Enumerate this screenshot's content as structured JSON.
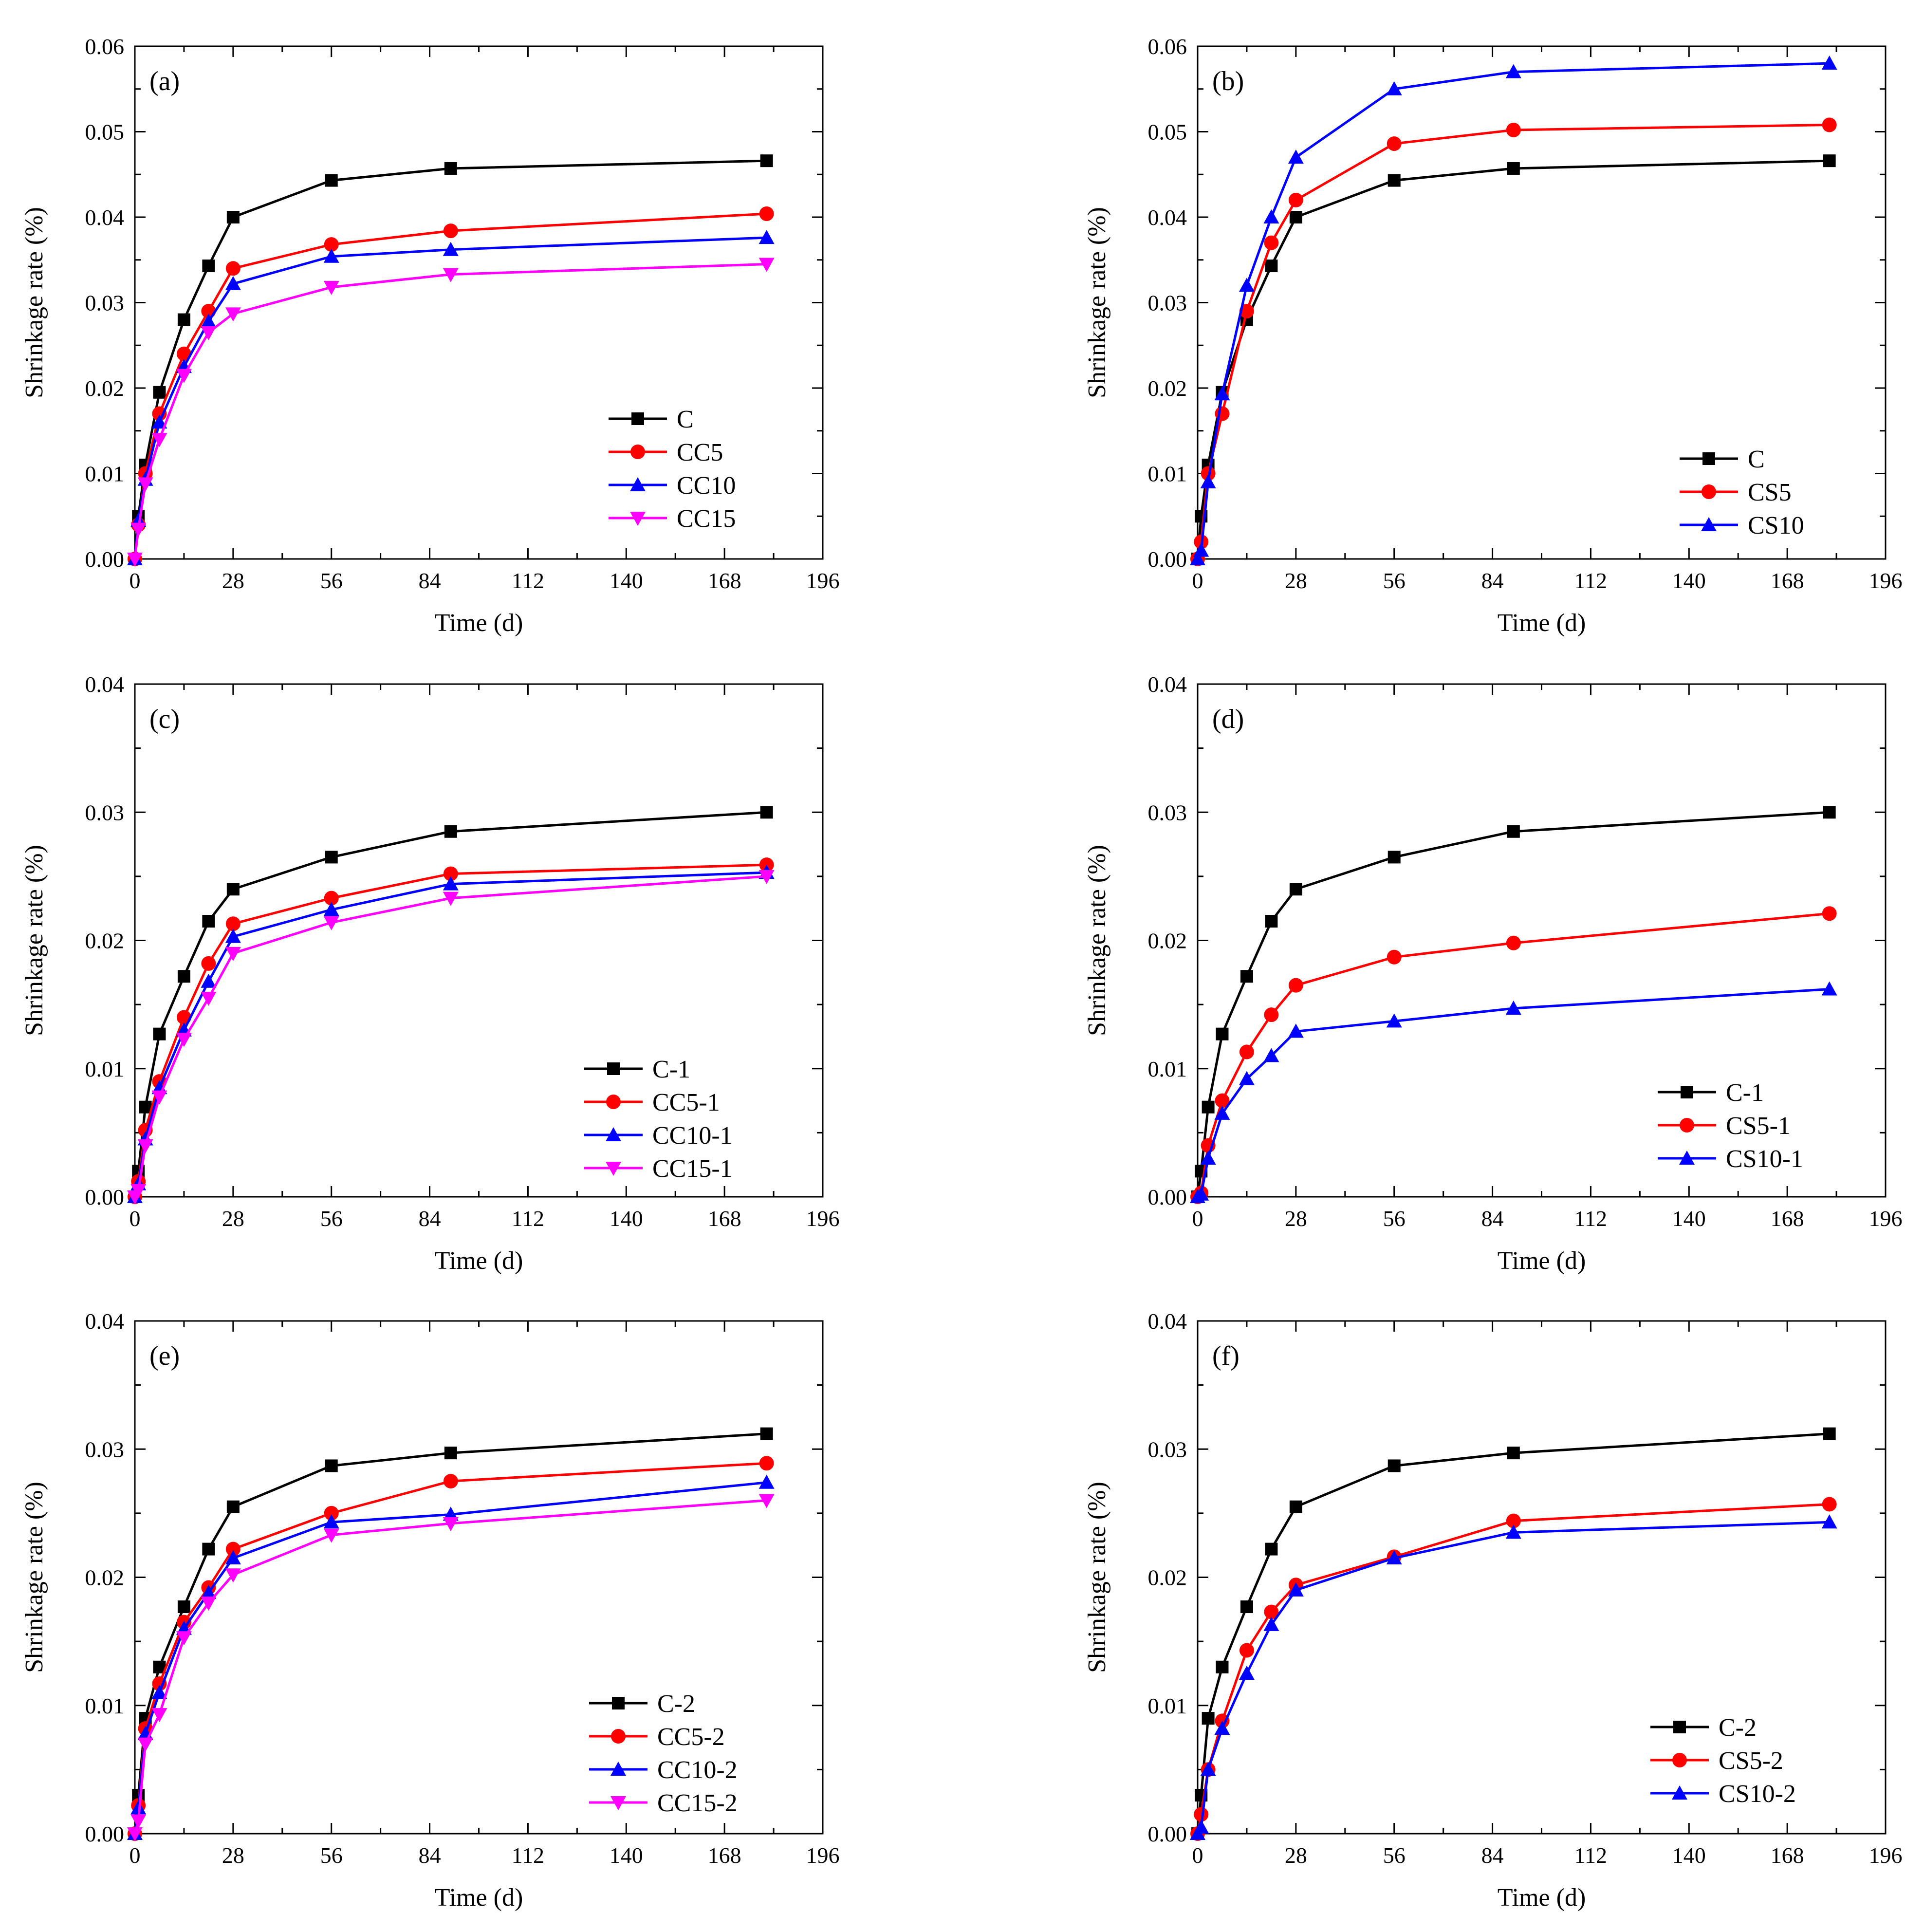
{
  "figure": {
    "ylabel": "Shrinkage rate (%)",
    "xlabel": "Time (d)",
    "xticks": [
      "0",
      "28",
      "56",
      "84",
      "112",
      "140",
      "168",
      "196"
    ]
  },
  "colors": {
    "black": "#000000",
    "red": "#ff0000",
    "blue": "#0000ff",
    "magenta": "#ff00ff"
  },
  "chart_data": [
    {
      "type": "line",
      "panel": "(a)",
      "xlabel": "Time (d)",
      "ylabel": "Shrinkage rate (%)",
      "xlim": [
        0,
        196
      ],
      "ylim": [
        0,
        0.06
      ],
      "yticks": [
        "0.00",
        "0.01",
        "0.02",
        "0.03",
        "0.04",
        "0.05",
        "0.06"
      ],
      "x": [
        0,
        1,
        3,
        7,
        14,
        21,
        28,
        56,
        90,
        180
      ],
      "legend": "lower-right",
      "series": [
        {
          "name": "C",
          "color": "black",
          "marker": "square",
          "values": [
            0,
            0.005,
            0.011,
            0.0195,
            0.028,
            0.0343,
            0.04,
            0.0443,
            0.0457,
            0.0466
          ]
        },
        {
          "name": "CC5",
          "color": "red",
          "marker": "circle",
          "values": [
            0,
            0.004,
            0.01,
            0.017,
            0.024,
            0.029,
            0.034,
            0.0368,
            0.0384,
            0.0404
          ]
        },
        {
          "name": "CC10",
          "color": "blue",
          "marker": "triangle-up",
          "values": [
            0,
            0.0045,
            0.0093,
            0.016,
            0.0225,
            0.0278,
            0.0322,
            0.0354,
            0.0362,
            0.0376
          ]
        },
        {
          "name": "CC15",
          "color": "magenta",
          "marker": "triangle-down",
          "values": [
            0,
            0.0035,
            0.0088,
            0.014,
            0.0215,
            0.0265,
            0.0287,
            0.0318,
            0.0333,
            0.0345
          ]
        }
      ]
    },
    {
      "type": "line",
      "panel": "(b)",
      "xlabel": "Time (d)",
      "ylabel": "Shrinkage rate (%)",
      "xlim": [
        0,
        196
      ],
      "ylim": [
        0,
        0.06
      ],
      "yticks": [
        "0.00",
        "0.01",
        "0.02",
        "0.03",
        "0.04",
        "0.05",
        "0.06"
      ],
      "x": [
        0,
        1,
        3,
        7,
        14,
        21,
        28,
        56,
        90,
        180
      ],
      "legend": "lower-right",
      "series": [
        {
          "name": "C",
          "color": "black",
          "marker": "square",
          "values": [
            0,
            0.005,
            0.011,
            0.0195,
            0.028,
            0.0343,
            0.04,
            0.0443,
            0.0457,
            0.0466
          ]
        },
        {
          "name": "CS5",
          "color": "red",
          "marker": "circle",
          "values": [
            0,
            0.002,
            0.01,
            0.017,
            0.029,
            0.037,
            0.042,
            0.0486,
            0.0502,
            0.0508
          ]
        },
        {
          "name": "CS10",
          "color": "blue",
          "marker": "triangle-up",
          "values": [
            0,
            0.001,
            0.009,
            0.0193,
            0.032,
            0.04,
            0.047,
            0.055,
            0.057,
            0.058
          ]
        }
      ]
    },
    {
      "type": "line",
      "panel": "(c)",
      "xlabel": "Time (d)",
      "ylabel": "Shrinkage rate (%)",
      "xlim": [
        0,
        196
      ],
      "ylim": [
        0,
        0.04
      ],
      "yticks": [
        "0.00",
        "0.01",
        "0.02",
        "0.03",
        "0.04"
      ],
      "x": [
        0,
        1,
        3,
        7,
        14,
        21,
        28,
        56,
        90,
        180
      ],
      "legend": "lower-right",
      "series": [
        {
          "name": "C-1",
          "color": "black",
          "marker": "square",
          "values": [
            0,
            0.002,
            0.007,
            0.0127,
            0.0172,
            0.0215,
            0.024,
            0.0265,
            0.0285,
            0.03
          ]
        },
        {
          "name": "CC5-1",
          "color": "red",
          "marker": "circle",
          "values": [
            0,
            0.0012,
            0.0052,
            0.009,
            0.014,
            0.0182,
            0.0213,
            0.0233,
            0.0252,
            0.0259
          ]
        },
        {
          "name": "CC10-1",
          "color": "blue",
          "marker": "triangle-up",
          "values": [
            0,
            0.001,
            0.0045,
            0.0085,
            0.013,
            0.0168,
            0.0203,
            0.0224,
            0.0244,
            0.0253
          ]
        },
        {
          "name": "CC15-1",
          "color": "magenta",
          "marker": "triangle-down",
          "values": [
            0,
            0.0005,
            0.004,
            0.0078,
            0.0123,
            0.0155,
            0.019,
            0.0214,
            0.0233,
            0.025
          ]
        }
      ]
    },
    {
      "type": "line",
      "panel": "(d)",
      "xlabel": "Time (d)",
      "ylabel": "Shrinkage rate (%)",
      "xlim": [
        0,
        196
      ],
      "ylim": [
        0,
        0.04
      ],
      "yticks": [
        "0.00",
        "0.01",
        "0.02",
        "0.03",
        "0.04"
      ],
      "x": [
        0,
        1,
        3,
        7,
        14,
        21,
        28,
        56,
        90,
        180
      ],
      "legend": "lower-right",
      "series": [
        {
          "name": "C-1",
          "color": "black",
          "marker": "square",
          "values": [
            0,
            0.002,
            0.007,
            0.0127,
            0.0172,
            0.0215,
            0.024,
            0.0265,
            0.0285,
            0.03
          ]
        },
        {
          "name": "CS5-1",
          "color": "red",
          "marker": "circle",
          "values": [
            0,
            0.0003,
            0.004,
            0.0075,
            0.0113,
            0.0142,
            0.0165,
            0.0187,
            0.0198,
            0.0221
          ]
        },
        {
          "name": "CS10-1",
          "color": "blue",
          "marker": "triangle-up",
          "values": [
            0,
            0.0002,
            0.003,
            0.0065,
            0.0092,
            0.011,
            0.0129,
            0.0137,
            0.0147,
            0.0162
          ]
        }
      ]
    },
    {
      "type": "line",
      "panel": "(e)",
      "xlabel": "Time (d)",
      "ylabel": "Shrinkage rate (%)",
      "xlim": [
        0,
        196
      ],
      "ylim": [
        0,
        0.04
      ],
      "yticks": [
        "0.00",
        "0.01",
        "0.02",
        "0.03",
        "0.04"
      ],
      "x": [
        0,
        1,
        3,
        7,
        14,
        21,
        28,
        56,
        90,
        180
      ],
      "legend": "lower-right",
      "series": [
        {
          "name": "C-2",
          "color": "black",
          "marker": "square",
          "values": [
            0,
            0.003,
            0.009,
            0.013,
            0.0177,
            0.0222,
            0.0255,
            0.0287,
            0.0297,
            0.0312
          ]
        },
        {
          "name": "CC5-2",
          "color": "red",
          "marker": "circle",
          "values": [
            0,
            0.0022,
            0.0082,
            0.0117,
            0.0165,
            0.0192,
            0.0222,
            0.025,
            0.0275,
            0.0289
          ]
        },
        {
          "name": "CC10-2",
          "color": "blue",
          "marker": "triangle-up",
          "values": [
            0,
            0.002,
            0.0078,
            0.011,
            0.016,
            0.0188,
            0.0215,
            0.0243,
            0.0249,
            0.0274
          ]
        },
        {
          "name": "CC15-2",
          "color": "magenta",
          "marker": "triangle-down",
          "values": [
            0,
            0.001,
            0.007,
            0.0093,
            0.0153,
            0.018,
            0.0202,
            0.0233,
            0.0242,
            0.026
          ]
        }
      ]
    },
    {
      "type": "line",
      "panel": "(f)",
      "xlabel": "Time (d)",
      "ylabel": "Shrinkage rate (%)",
      "xlim": [
        0,
        196
      ],
      "ylim": [
        0,
        0.04
      ],
      "yticks": [
        "0.00",
        "0.01",
        "0.02",
        "0.03",
        "0.04"
      ],
      "x": [
        0,
        1,
        3,
        7,
        14,
        21,
        28,
        56,
        90,
        180
      ],
      "legend": "lower-right",
      "series": [
        {
          "name": "C-2",
          "color": "black",
          "marker": "square",
          "values": [
            0,
            0.003,
            0.009,
            0.013,
            0.0177,
            0.0222,
            0.0255,
            0.0287,
            0.0297,
            0.0312
          ]
        },
        {
          "name": "CS5-2",
          "color": "red",
          "marker": "circle",
          "values": [
            0,
            0.0015,
            0.005,
            0.0088,
            0.0143,
            0.0173,
            0.0194,
            0.0216,
            0.0244,
            0.0257
          ]
        },
        {
          "name": "CS10-2",
          "color": "blue",
          "marker": "triangle-up",
          "values": [
            0,
            0.0005,
            0.005,
            0.0082,
            0.0125,
            0.0163,
            0.019,
            0.0215,
            0.0235,
            0.0243
          ]
        }
      ]
    }
  ]
}
